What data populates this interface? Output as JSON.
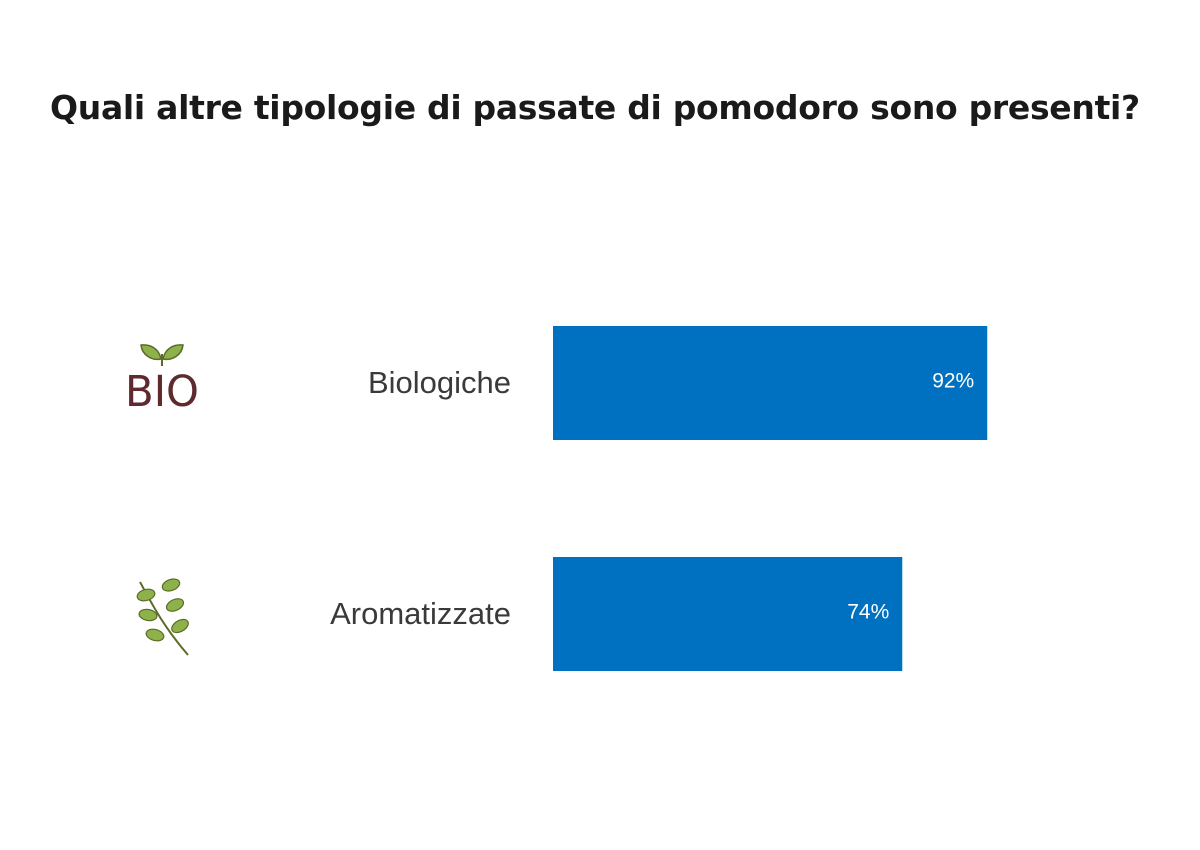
{
  "chart_data": {
    "type": "bar",
    "orientation": "horizontal",
    "title": "Quali altre tipologie di passate di pomodoro sono presenti?",
    "categories": [
      "Biologiche",
      "Aromatizzate"
    ],
    "values": [
      92,
      74
    ],
    "value_labels": [
      "92%",
      "74%"
    ],
    "category_icons": [
      "bio-icon",
      "herb-icon"
    ],
    "unit": "%",
    "xlim": [
      0,
      100
    ],
    "grid": false,
    "legend": "none",
    "bar_color": "#0070c0",
    "value_label_color": "#ffffff"
  }
}
